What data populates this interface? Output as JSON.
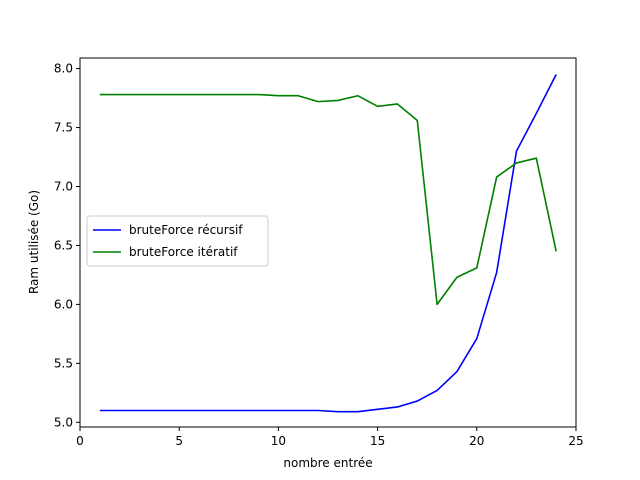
{
  "chart_data": {
    "type": "line",
    "title": "",
    "xlabel": "nombre entrée",
    "ylabel": "Ram utilisée (Go)",
    "xlim": [
      0,
      25
    ],
    "ylim": [
      4.96,
      8.09
    ],
    "xticks": [
      0,
      5,
      10,
      15,
      20,
      25
    ],
    "yticks": [
      5.0,
      5.5,
      6.0,
      6.5,
      7.0,
      7.5,
      8.0
    ],
    "xtick_labels": [
      "0",
      "5",
      "10",
      "15",
      "20",
      "25"
    ],
    "ytick_labels": [
      "5.0",
      "5.5",
      "6.0",
      "6.5",
      "7.0",
      "7.5",
      "8.0"
    ],
    "grid": false,
    "legend_position": "center-left",
    "x": [
      1,
      2,
      3,
      4,
      5,
      6,
      7,
      8,
      9,
      10,
      11,
      12,
      13,
      14,
      15,
      16,
      17,
      18,
      19,
      20,
      21,
      22,
      23,
      24
    ],
    "series": [
      {
        "name": "bruteForce récursif",
        "color": "#0000ff",
        "values": [
          5.1,
          5.1,
          5.1,
          5.1,
          5.1,
          5.1,
          5.1,
          5.1,
          5.1,
          5.1,
          5.1,
          5.1,
          5.09,
          5.09,
          5.11,
          5.13,
          5.18,
          5.27,
          5.43,
          5.71,
          6.27,
          7.3,
          7.62,
          7.95
        ]
      },
      {
        "name": "bruteForce itératif",
        "color": "#008000",
        "values": [
          7.78,
          7.78,
          7.78,
          7.78,
          7.78,
          7.78,
          7.78,
          7.78,
          7.78,
          7.77,
          7.77,
          7.72,
          7.73,
          7.77,
          7.68,
          7.7,
          7.56,
          6.0,
          6.23,
          6.31,
          7.08,
          7.2,
          7.24,
          6.45
        ]
      }
    ]
  }
}
